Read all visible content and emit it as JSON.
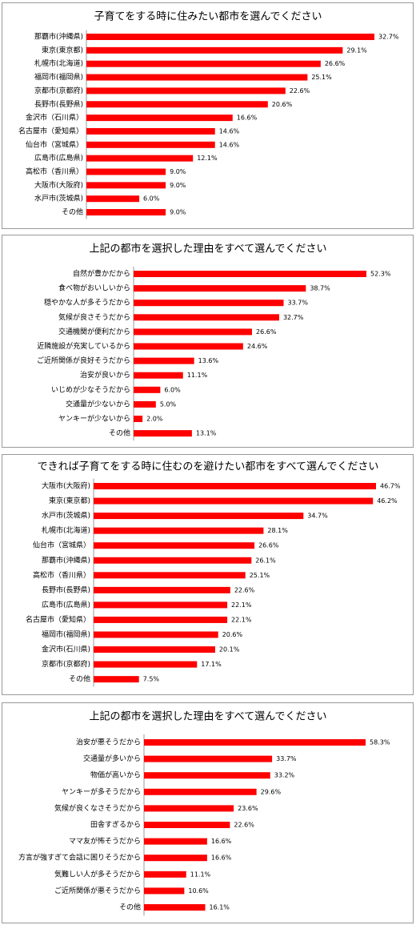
{
  "chart_data": [
    {
      "type": "bar",
      "orientation": "horizontal",
      "color": "#ff0000",
      "title": "子育てをする時に住みたい都市を選んでください",
      "categories": [
        "那覇市(沖縄県)",
        "東京(東京都)",
        "札幌市(北海道)",
        "福岡市(福岡県)",
        "京都市(京都府)",
        "長野市(長野県)",
        "金沢市（石川県）",
        "名古屋市（愛知県）",
        "仙台市（宮城県）",
        "広島市(広島県)",
        "高松市（香川県）",
        "大阪市(大阪府)",
        "水戸市(茨城県)",
        "その他"
      ],
      "values": [
        32.7,
        29.1,
        26.6,
        25.1,
        22.6,
        20.6,
        16.6,
        14.6,
        14.6,
        12.1,
        9.0,
        9.0,
        6.0,
        9.0
      ],
      "value_labels": [
        "32.7%",
        "29.1%",
        "26.6%",
        "25.1%",
        "22.6%",
        "20.6%",
        "16.6%",
        "14.6%",
        "14.6%",
        "12.1%",
        "9.0%",
        "9.0%",
        "6.0%",
        "9.0%"
      ]
    },
    {
      "type": "bar",
      "orientation": "horizontal",
      "color": "#ff0000",
      "title": "上記の都市を選択した理由をすべて選んでください",
      "categories": [
        "自然が豊かだから",
        "食べ物がおいしいから",
        "穏やかな人が多そうだから",
        "気候が良さそうだから",
        "交通機関が便利だから",
        "近隣施設が充実しているから",
        "ご近所関係が良好そうだから",
        "治安が良いから",
        "いじめが少なそうだから",
        "交通量が少ないから",
        "ヤンキーが少ないから",
        "その他"
      ],
      "values": [
        52.3,
        38.7,
        33.7,
        32.7,
        26.6,
        24.6,
        13.6,
        11.1,
        6.0,
        5.0,
        2.0,
        13.1
      ],
      "value_labels": [
        "52.3%",
        "38.7%",
        "33.7%",
        "32.7%",
        "26.6%",
        "24.6%",
        "13.6%",
        "11.1%",
        "6.0%",
        "5.0%",
        "2.0%",
        "13.1%"
      ]
    },
    {
      "type": "bar",
      "orientation": "horizontal",
      "color": "#ff0000",
      "title": "できれば子育てをする時に住むのを避けたい都市をすべて選んでください",
      "categories": [
        "大阪市(大阪府)",
        "東京(東京都)",
        "水戸市(茨城県)",
        "札幌市(北海道)",
        "仙台市（宮城県）",
        "那覇市(沖縄県)",
        "高松市（香川県）",
        "長野市(長野県)",
        "広島市(広島県)",
        "名古屋市（愛知県）",
        "福岡市(福岡県)",
        "金沢市(石川県)",
        "京都市(京都府)",
        "その他"
      ],
      "values": [
        46.7,
        46.2,
        34.7,
        28.1,
        26.6,
        26.1,
        25.1,
        22.6,
        22.1,
        22.1,
        20.6,
        20.1,
        17.1,
        7.5
      ],
      "value_labels": [
        "46.7%",
        "46.2%",
        "34.7%",
        "28.1%",
        "26.6%",
        "26.1%",
        "25.1%",
        "22.6%",
        "22.1%",
        "22.1%",
        "20.6%",
        "20.1%",
        "17.1%",
        "7.5%"
      ]
    },
    {
      "type": "bar",
      "orientation": "horizontal",
      "color": "#ff0000",
      "title": "上記の都市を選択した理由をすべて選んでください",
      "categories": [
        "治安が悪そうだから",
        "交通量が多いから",
        "物価が高いから",
        "ヤンキーが多そうだから",
        "気候が良くなさそうだから",
        "田舎すぎるから",
        "ママ友が怖そうだから",
        "方言が強すぎて会話に困りそうだから",
        "気難しい人が多そうだから",
        "ご近所関係が悪そうだから",
        "その他"
      ],
      "values": [
        58.3,
        33.7,
        33.2,
        29.6,
        23.6,
        22.6,
        16.6,
        16.6,
        11.1,
        10.6,
        16.1
      ],
      "value_labels": [
        "58.3%",
        "33.7%",
        "33.2%",
        "29.6%",
        "23.6%",
        "22.6%",
        "16.6%",
        "16.6%",
        "11.1%",
        "10.6%",
        "16.1%"
      ]
    }
  ]
}
